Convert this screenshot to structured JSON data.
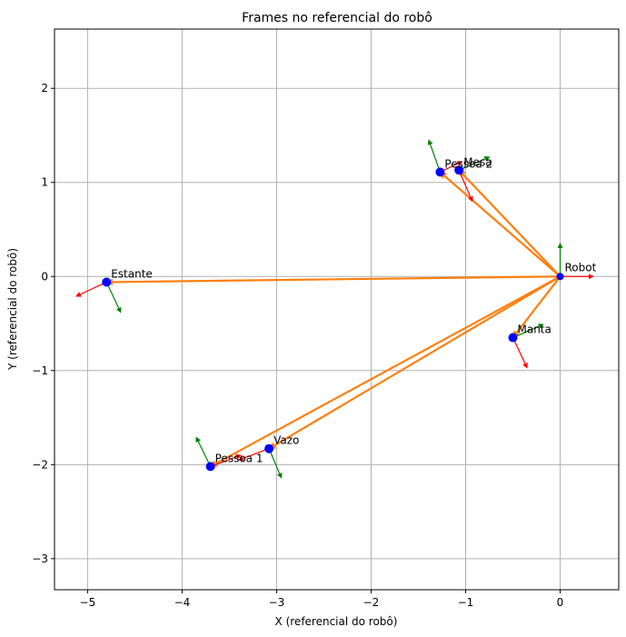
{
  "chart_data": {
    "type": "scatter",
    "title": "Frames no referencial do robô",
    "xlabel": "X (referencial do robô)",
    "ylabel": "Y (referencial do robô)",
    "xlim": [
      -5.35,
      0.62
    ],
    "ylim": [
      -3.33,
      2.63
    ],
    "xticks": [
      -5,
      -4,
      -3,
      -2,
      -1,
      0
    ],
    "yticks": [
      -3,
      -2,
      -1,
      0,
      1,
      2
    ],
    "grid": true,
    "colors": {
      "origin_vector": "#ff7f0e",
      "x_axis": "#ff0000",
      "y_axis": "#008000",
      "point": "#0000ff",
      "grid": "#b0b0b0"
    },
    "robot": {
      "label": "Robot",
      "x": 0,
      "y": 0,
      "x_axis_end": [
        0.35,
        0
      ],
      "y_axis_end": [
        0,
        0.35
      ]
    },
    "frames": [
      {
        "label": "Pessoa 2",
        "x": -1.27,
        "y": 1.11,
        "x_axis_end": [
          -1.04,
          1.22
        ],
        "y_axis_end": [
          -1.39,
          1.45
        ]
      },
      {
        "label": "Mesa",
        "x": -1.07,
        "y": 1.13,
        "x_axis_end": [
          -0.93,
          0.8
        ],
        "y_axis_end": [
          -0.75,
          1.27
        ]
      },
      {
        "label": "Estante",
        "x": -4.8,
        "y": -0.06,
        "x_axis_end": [
          -5.12,
          -0.21
        ],
        "y_axis_end": [
          -4.65,
          -0.38
        ]
      },
      {
        "label": "Manta",
        "x": -0.5,
        "y": -0.65,
        "x_axis_end": [
          -0.35,
          -0.97
        ],
        "y_axis_end": [
          -0.18,
          -0.51
        ]
      },
      {
        "label": "Vazo",
        "x": -3.08,
        "y": -1.83,
        "x_axis_end": [
          -3.4,
          -1.95
        ],
        "y_axis_end": [
          -2.95,
          -2.14
        ]
      },
      {
        "label": "Pessoa 1",
        "x": -3.7,
        "y": -2.02,
        "x_axis_end": [
          -3.38,
          -1.9
        ],
        "y_axis_end": [
          -3.85,
          -1.71
        ]
      }
    ]
  }
}
